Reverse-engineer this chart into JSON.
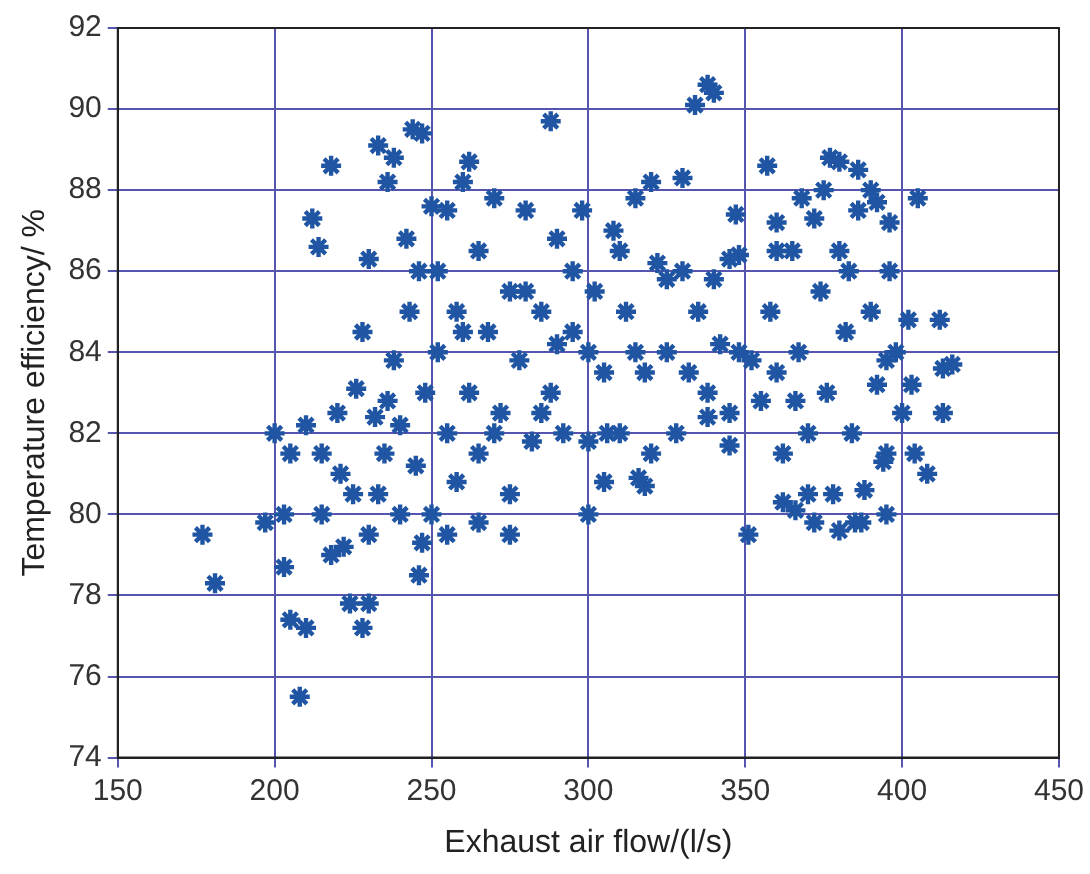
{
  "chart_data": {
    "type": "scatter",
    "xlabel": "Exhaust air flow/(l/s)",
    "ylabel": "Temperature efficiency/ %",
    "xlim": [
      150,
      450
    ],
    "xticks": [
      150,
      200,
      250,
      300,
      350,
      400,
      450
    ],
    "ylim": [
      74,
      92
    ],
    "yticks": [
      74,
      76,
      78,
      80,
      82,
      84,
      86,
      88,
      90,
      92
    ],
    "grid": true,
    "marker": "cross",
    "legend": false,
    "series": [
      {
        "color": "#1f55a3",
        "x": [
          177,
          181,
          197,
          200,
          203,
          203,
          205,
          208,
          210,
          212,
          214,
          218,
          221,
          222,
          224,
          228,
          230,
          230,
          233,
          236,
          238,
          244,
          247,
          246,
          226,
          232,
          240,
          210,
          215,
          205,
          288,
          262,
          334,
          338,
          340,
          347,
          348,
          351,
          338,
          345,
          306,
          300,
          318,
          316,
          395,
          387,
          405,
          412,
          413,
          416,
          413,
          408,
          395,
          372,
          380,
          366,
          362,
          357,
          360,
          377,
          380,
          386,
          368,
          392,
          396,
          252,
          252,
          255,
          255,
          258,
          258,
          260,
          262,
          265,
          265,
          268,
          270,
          272,
          275,
          275,
          278,
          280,
          282,
          285,
          288,
          290,
          292,
          295,
          298,
          300,
          302,
          305,
          308,
          310,
          312,
          315,
          318,
          320,
          322,
          325,
          328,
          330,
          332,
          335,
          338,
          342,
          345,
          348,
          352,
          355,
          270,
          285,
          300,
          315,
          260,
          280,
          295,
          310,
          325,
          290,
          305,
          320,
          330,
          265,
          275,
          255,
          340,
          345,
          215,
          220,
          225,
          230,
          235,
          238,
          240,
          243,
          245,
          248,
          250,
          218,
          228,
          233,
          242,
          246,
          250,
          236,
          247,
          358,
          360,
          362,
          365,
          367,
          370,
          372,
          374,
          376,
          378,
          380,
          382,
          384,
          386,
          388,
          390,
          392,
          394,
          396,
          398,
          400,
          402,
          404,
          370,
          385,
          375,
          390,
          366,
          395,
          383,
          360,
          403
        ],
        "values": [
          79.5,
          78.3,
          79.8,
          82,
          80,
          78.7,
          77.4,
          75.5,
          77.2,
          87.3,
          86.6,
          88.6,
          81,
          79.2,
          77.8,
          77.2,
          86.3,
          77.8,
          89.1,
          88.2,
          88.8,
          89.5,
          89.4,
          78.5,
          83.1,
          82.4,
          82.2,
          82.2,
          81.5,
          81.5,
          89.7,
          88.7,
          90.1,
          90.6,
          90.4,
          87.4,
          86.4,
          79.5,
          82.4,
          81.7,
          82,
          80,
          80.7,
          80.9,
          80,
          79.8,
          87.8,
          84.8,
          83.6,
          83.7,
          82.5,
          81,
          81.5,
          79.8,
          79.6,
          80.1,
          80.3,
          88.6,
          87.2,
          88.8,
          88.7,
          88.5,
          87.8,
          87.7,
          87.2,
          84,
          86,
          82,
          87.5,
          80.8,
          85,
          88.2,
          83,
          86.5,
          81.5,
          84.5,
          87.8,
          82.5,
          85.5,
          80.5,
          83.8,
          87.5,
          81.8,
          85,
          83,
          86.8,
          82,
          84.5,
          87.5,
          81.8,
          85.5,
          83.5,
          87,
          82,
          85,
          87.8,
          83.5,
          81.5,
          86.2,
          84,
          82,
          86,
          83.5,
          85,
          83,
          84.2,
          82.5,
          84,
          83.8,
          82.8,
          82,
          82.5,
          84,
          84,
          84.5,
          85.5,
          86,
          86.5,
          85.8,
          84.2,
          80.8,
          88.2,
          88.3,
          79.8,
          79.5,
          79.5,
          85.8,
          86.3,
          80,
          82.5,
          80.5,
          79.5,
          81.5,
          83.8,
          80,
          85,
          81.2,
          83,
          80,
          79,
          84.5,
          80.5,
          86.8,
          86,
          87.6,
          82.8,
          79.3,
          85,
          83.5,
          81.5,
          86.5,
          84,
          82,
          87.3,
          85.5,
          83,
          80.5,
          86.5,
          84.5,
          82,
          87.5,
          80.6,
          85,
          83.2,
          81.3,
          86,
          84,
          82.5,
          84.8,
          81.5,
          80.5,
          79.8,
          88,
          88,
          82.8,
          83.8,
          86,
          86.5,
          83.2
        ]
      }
    ]
  }
}
